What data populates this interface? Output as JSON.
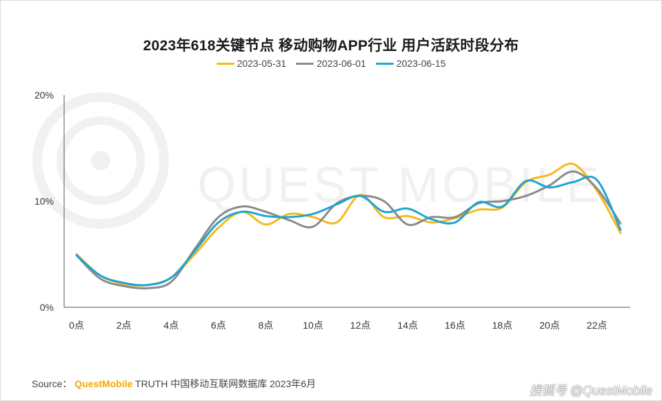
{
  "title": "2023年618关键节点 移动购物APP行业 用户活跃时段分布",
  "watermark": "QUEST MOBILE",
  "footer": {
    "prefix": "Source：",
    "brand": "QuestMobile",
    "suffix": " TRUTH 中国移动互联网数据库 2023年6月"
  },
  "corner_mark": {
    "text1": "搜狐号",
    "text2": "@QuestMobile"
  },
  "chart_data": {
    "type": "line",
    "title": "2023年618关键节点 移动购物APP行业 用户活跃时段分布",
    "x": [
      0,
      1,
      2,
      3,
      4,
      5,
      6,
      7,
      8,
      9,
      10,
      11,
      12,
      13,
      14,
      15,
      16,
      17,
      18,
      19,
      20,
      21,
      22,
      23
    ],
    "x_tick_labels": [
      "0点",
      "2点",
      "4点",
      "6点",
      "8点",
      "10点",
      "12点",
      "14点",
      "16点",
      "18点",
      "20点",
      "22点"
    ],
    "y_tick_labels": [
      "0%",
      "10%",
      "20%"
    ],
    "ylim": [
      0,
      20
    ],
    "y_unit": "%",
    "legend_position": "top-center",
    "grid": false,
    "series": [
      {
        "name": "2023-05-31",
        "color": "#f6b81a",
        "values": [
          5.0,
          3.0,
          2.2,
          2.1,
          2.8,
          5.0,
          7.5,
          9.0,
          7.8,
          8.8,
          8.5,
          8.0,
          10.6,
          8.5,
          8.6,
          8.0,
          8.4,
          9.2,
          9.4,
          11.8,
          12.5,
          13.5,
          11.0,
          7.0
        ]
      },
      {
        "name": "2023-06-01",
        "color": "#8a8a8a",
        "values": [
          4.9,
          2.7,
          2.0,
          1.8,
          2.4,
          5.5,
          8.5,
          9.5,
          9.0,
          8.2,
          7.6,
          9.8,
          10.5,
          10.0,
          7.8,
          8.5,
          8.5,
          9.8,
          10.0,
          10.5,
          11.5,
          12.8,
          11.2,
          7.9
        ]
      },
      {
        "name": "2023-06-15",
        "color": "#1fa4d4",
        "values": [
          4.9,
          3.0,
          2.3,
          2.1,
          2.8,
          5.3,
          8.0,
          9.0,
          8.6,
          8.5,
          8.8,
          9.7,
          10.5,
          9.0,
          9.3,
          8.3,
          8.0,
          9.9,
          9.5,
          11.9,
          11.3,
          11.8,
          12.0,
          7.3
        ]
      }
    ]
  }
}
